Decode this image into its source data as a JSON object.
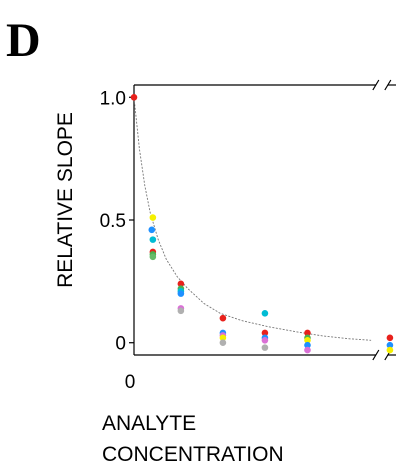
{
  "panel_label": "D",
  "chart_data": {
    "type": "scatter",
    "title": "",
    "xlabel_lines": [
      "ANALYTE",
      "CONCENTRATION"
    ],
    "ylabel": "RELATIVE  SLOPE",
    "y_ticks": [
      {
        "value": 1.0,
        "label": "1.0"
      },
      {
        "value": 0.5,
        "label": "0.5"
      },
      {
        "value": 0,
        "label": "0"
      }
    ],
    "x_ticks": [
      {
        "value": 0,
        "label": "0"
      }
    ],
    "xlim": [
      0,
      4.9
    ],
    "ylim": [
      -0.05,
      1.05
    ],
    "x_break_at": 4.6,
    "grid": false,
    "fit_curve": {
      "shape": "decay",
      "values": [
        [
          0,
          1.0
        ],
        [
          0.1,
          0.79
        ],
        [
          0.2,
          0.64
        ],
        [
          0.3,
          0.53
        ],
        [
          0.45,
          0.42
        ],
        [
          0.6,
          0.34
        ],
        [
          0.8,
          0.27
        ],
        [
          1.0,
          0.22
        ],
        [
          1.3,
          0.16
        ],
        [
          1.6,
          0.12
        ],
        [
          2.0,
          0.09
        ],
        [
          2.5,
          0.065
        ],
        [
          3.0,
          0.045
        ],
        [
          3.5,
          0.028
        ],
        [
          4.0,
          0.016
        ],
        [
          4.4,
          0.01
        ]
      ]
    },
    "points": [
      {
        "x": 0.0,
        "y": 1.0,
        "color": "#e8211c"
      },
      {
        "x": 0.35,
        "y": 0.51,
        "color": "#f5f000"
      },
      {
        "x": 0.33,
        "y": 0.46,
        "color": "#1e90ff"
      },
      {
        "x": 0.35,
        "y": 0.42,
        "color": "#00bcd4"
      },
      {
        "x": 0.35,
        "y": 0.37,
        "color": "#e8211c"
      },
      {
        "x": 0.35,
        "y": 0.36,
        "color": "#4caf50"
      },
      {
        "x": 0.35,
        "y": 0.35,
        "color": "#66bb6a"
      },
      {
        "x": 0.87,
        "y": 0.24,
        "color": "#e8211c"
      },
      {
        "x": 0.87,
        "y": 0.22,
        "color": "#4caf50"
      },
      {
        "x": 0.87,
        "y": 0.21,
        "color": "#00bcd4"
      },
      {
        "x": 0.87,
        "y": 0.2,
        "color": "#1e90ff"
      },
      {
        "x": 0.87,
        "y": 0.14,
        "color": "#da70d6"
      },
      {
        "x": 0.87,
        "y": 0.13,
        "color": "#b0b0b0"
      },
      {
        "x": 1.65,
        "y": 0.1,
        "color": "#e8211c"
      },
      {
        "x": 1.65,
        "y": 0.04,
        "color": "#1e90ff"
      },
      {
        "x": 1.65,
        "y": 0.03,
        "color": "#da70d6"
      },
      {
        "x": 1.65,
        "y": 0.02,
        "color": "#f5f000"
      },
      {
        "x": 1.65,
        "y": 0.0,
        "color": "#b0b0b0"
      },
      {
        "x": 2.43,
        "y": 0.12,
        "color": "#00bcd4"
      },
      {
        "x": 2.43,
        "y": 0.04,
        "color": "#e8211c"
      },
      {
        "x": 2.43,
        "y": 0.02,
        "color": "#1e90ff"
      },
      {
        "x": 2.43,
        "y": 0.01,
        "color": "#da70d6"
      },
      {
        "x": 2.43,
        "y": -0.02,
        "color": "#b0b0b0"
      },
      {
        "x": 3.22,
        "y": 0.04,
        "color": "#e8211c"
      },
      {
        "x": 3.22,
        "y": 0.02,
        "color": "#4caf50"
      },
      {
        "x": 3.22,
        "y": 0.01,
        "color": "#f5f000"
      },
      {
        "x": 3.22,
        "y": -0.01,
        "color": "#1e90ff"
      },
      {
        "x": 3.22,
        "y": -0.03,
        "color": "#da70d6"
      },
      {
        "x": 4.75,
        "y": 0.02,
        "color": "#e8211c"
      },
      {
        "x": 4.75,
        "y": -0.01,
        "color": "#1e90ff"
      },
      {
        "x": 4.75,
        "y": -0.03,
        "color": "#f5f000"
      }
    ]
  }
}
